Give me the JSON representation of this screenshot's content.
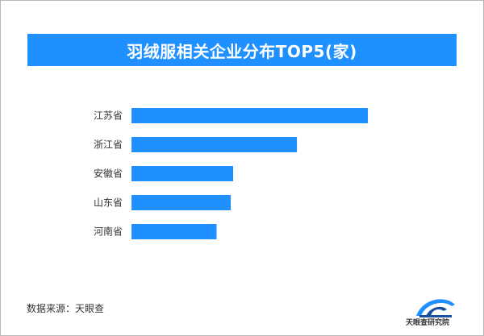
{
  "chart_data": {
    "type": "bar",
    "orientation": "horizontal",
    "title": "羽绒服相关企业分布TOP5(家)",
    "categories": [
      "江苏省",
      "浙江省",
      "安徽省",
      "山东省",
      "河南省"
    ],
    "values": [
      100,
      70,
      43,
      42,
      36
    ],
    "xlim": [
      0,
      100
    ],
    "bar_color": "#1e90ff",
    "grid": false,
    "legend": "none"
  },
  "footer": {
    "source": "数据来源：天眼查",
    "logo_text": "天眼查研究院"
  }
}
